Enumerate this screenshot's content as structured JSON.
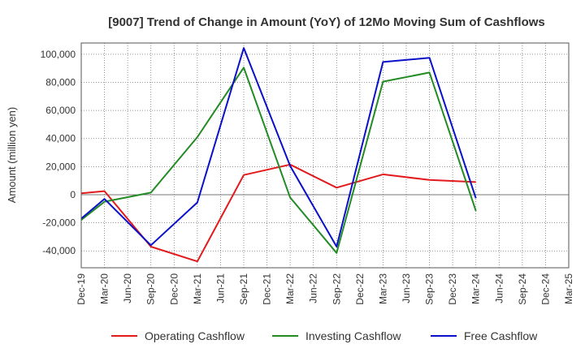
{
  "chart_data": {
    "type": "line",
    "title": "[9007]  Trend of Change in Amount (YoY) of 12Mo Moving Sum of Cashflows",
    "xlabel": "",
    "ylabel": "Amount (million yen)",
    "ylim": [
      -52000,
      108000
    ],
    "yticks": [
      -40000,
      -20000,
      0,
      20000,
      40000,
      60000,
      80000,
      100000
    ],
    "ytick_labels": [
      "-40,000",
      "-20,000",
      "0",
      "20,000",
      "40,000",
      "60,000",
      "80,000",
      "100,000"
    ],
    "categories": [
      "Dec-19",
      "Mar-20",
      "Jun-20",
      "Sep-20",
      "Dec-20",
      "Mar-21",
      "Jun-21",
      "Sep-21",
      "Dec-21",
      "Mar-22",
      "Jun-22",
      "Sep-22",
      "Dec-22",
      "Mar-23",
      "Jun-23",
      "Sep-23",
      "Dec-23",
      "Mar-24",
      "Jun-24",
      "Sep-24",
      "Dec-24",
      "Mar-25"
    ],
    "grid": true,
    "legend_position": "bottom",
    "series": [
      {
        "name": "Operating Cashflow",
        "color": "#e31a1c",
        "values": [
          1000,
          2500,
          null,
          -37000,
          null,
          -47500,
          null,
          14000,
          null,
          21500,
          null,
          5000,
          null,
          14500,
          null,
          10500,
          null,
          9000,
          null,
          null,
          null,
          null
        ]
      },
      {
        "name": "Investing Cashflow",
        "color": "#238b23",
        "values": [
          -18000,
          -5000,
          null,
          1500,
          null,
          41000,
          null,
          90500,
          null,
          -2000,
          null,
          -41500,
          null,
          80500,
          null,
          87000,
          null,
          -11500,
          null,
          null,
          null,
          null
        ]
      },
      {
        "name": "Free Cashflow",
        "color": "#0a10c8",
        "values": [
          -17000,
          -3000,
          null,
          -36000,
          null,
          -5500,
          null,
          104500,
          null,
          20500,
          null,
          -37000,
          null,
          94500,
          null,
          97500,
          null,
          -2500,
          null,
          null,
          null,
          null
        ]
      }
    ]
  }
}
